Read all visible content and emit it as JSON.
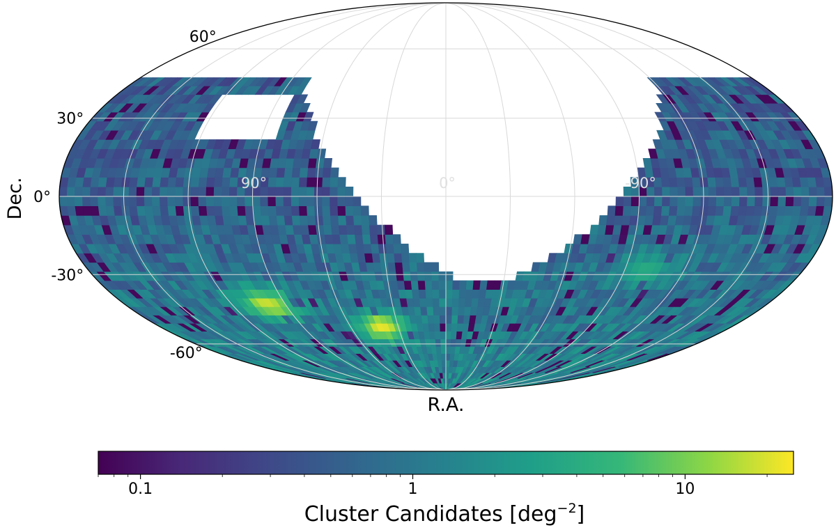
{
  "chart_data": {
    "type": "heatmap",
    "projection": "Mollweide (Hammer-Aitoff style all-sky)",
    "title": "",
    "xlabel": "R.A.",
    "ylabel": "Dec.",
    "grid": true,
    "dec_tick_labels": [
      "60°",
      "30°",
      "0°",
      "-30°",
      "-60°"
    ],
    "ra_inner_labels": [
      "90°",
      "0°",
      "-90°"
    ],
    "colorbar": {
      "scale": "log",
      "colormap": "viridis",
      "range": [
        0.07,
        25
      ],
      "ticks": [
        0.1,
        1,
        10
      ],
      "tick_labels": [
        "0.1",
        "1",
        "10"
      ],
      "label": "Cluster Candidates [deg",
      "label_superscript": "−2",
      "label_close": "]"
    },
    "hotspots": [
      {
        "ra": 100,
        "dec": -42,
        "value": 18
      },
      {
        "ra": 40,
        "dec": -52,
        "value": 22
      },
      {
        "ra": -100,
        "dec": -28,
        "value": 4
      }
    ],
    "colors": {
      "background": "#ffffff",
      "grid": "#d8d8d8",
      "outline": "#000000"
    }
  }
}
